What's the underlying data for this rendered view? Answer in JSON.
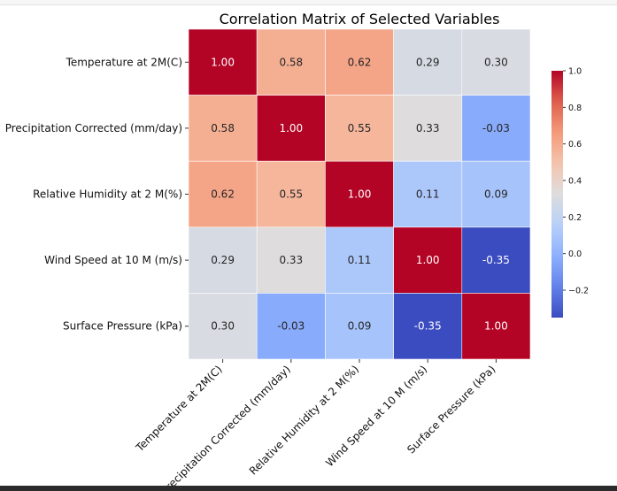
{
  "chart_data": {
    "type": "heatmap",
    "title": "Correlation Matrix of Selected Variables",
    "row_labels": [
      "Temperature at 2M(C)",
      "Precipitation Corrected (mm/day)",
      "Relative Humidity at 2 M(%)",
      "Wind Speed at 10 M (m/s)",
      "Surface Pressure (kPa)"
    ],
    "col_labels": [
      "Temperature at 2M(C)",
      "Precipitation Corrected (mm/day)",
      "Relative Humidity at 2 M(%)",
      "Wind Speed at 10 M (m/s)",
      "Surface Pressure (kPa)"
    ],
    "values": [
      [
        1.0,
        0.58,
        0.62,
        0.29,
        0.3
      ],
      [
        0.58,
        1.0,
        0.55,
        0.33,
        -0.03
      ],
      [
        0.62,
        0.55,
        1.0,
        0.11,
        0.09
      ],
      [
        0.29,
        0.33,
        0.11,
        1.0,
        -0.35
      ],
      [
        0.3,
        -0.03,
        0.09,
        -0.35,
        1.0
      ]
    ],
    "value_labels": [
      [
        "1.00",
        "0.58",
        "0.62",
        "0.29",
        "0.30"
      ],
      [
        "0.58",
        "1.00",
        "0.55",
        "0.33",
        "-0.03"
      ],
      [
        "0.62",
        "0.55",
        "1.00",
        "0.11",
        "0.09"
      ],
      [
        "0.29",
        "0.33",
        "0.11",
        "1.00",
        "-0.35"
      ],
      [
        "0.30",
        "-0.03",
        "0.09",
        "-0.35",
        "1.00"
      ]
    ],
    "colormap": "coolwarm",
    "colorbar": {
      "range": [
        -0.35,
        1.0
      ],
      "ticks": [
        -0.2,
        0.0,
        0.2,
        0.4,
        0.6,
        0.8,
        1.0
      ],
      "tick_labels": [
        "−0.2",
        "0.0",
        "0.2",
        "0.4",
        "0.6",
        "0.8",
        "1.0"
      ]
    },
    "grid": false,
    "legend": "colorbar-right"
  }
}
